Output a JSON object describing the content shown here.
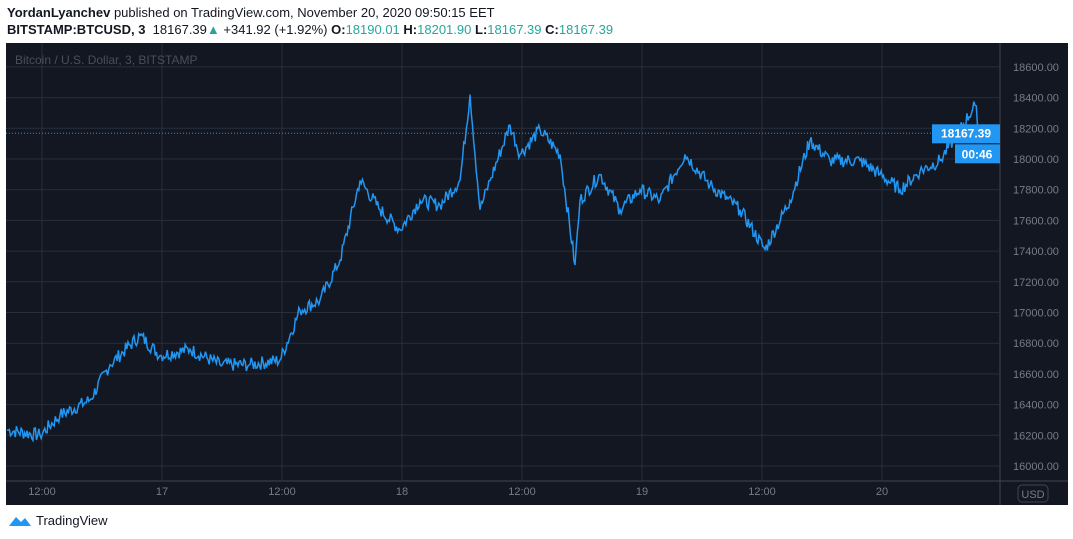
{
  "header": {
    "author": "YordanLyanchev",
    "published": "published on TradingView.com, November 20, 2020 09:50:15 EET"
  },
  "ticker": {
    "symbol": "BITSTAMP:BTCUSD, 3",
    "last": "18167.39",
    "change": "+341.92 (+1.92%)",
    "o_label": "O:",
    "o": "18190.01",
    "h_label": "H:",
    "h": "18201.90",
    "l_label": "L:",
    "l": "18167.39",
    "c_label": "C:",
    "c": "18167.39"
  },
  "footer": {
    "brand": "TradingView"
  },
  "colors": {
    "line": "#2196f3",
    "bg": "#131722",
    "grid": "#363a45",
    "up": "#26a69a"
  },
  "chart_data": {
    "type": "line",
    "title": "Bitcoin / U.S. Dollar, 3, BITSTAMP",
    "currency": "USD",
    "ylim": [
      16000,
      18600
    ],
    "yticks": [
      16000,
      16200,
      16400,
      16600,
      16800,
      17000,
      17200,
      17400,
      17600,
      17800,
      18000,
      18200,
      18400,
      18600
    ],
    "xlim_hours": [
      -3.5,
      95.8
    ],
    "xticks": [
      {
        "h": 0,
        "label": "12:00"
      },
      {
        "h": 12,
        "label": "17"
      },
      {
        "h": 24,
        "label": "12:00"
      },
      {
        "h": 36,
        "label": "18"
      },
      {
        "h": 48,
        "label": "12:00"
      },
      {
        "h": 60,
        "label": "19"
      },
      {
        "h": 72,
        "label": "12:00"
      },
      {
        "h": 84,
        "label": "20"
      }
    ],
    "last_price": "18167.39",
    "countdown": "00:46",
    "x_unit": "hours since Nov 16 12:00",
    "points": [
      [
        -3.5,
        16235
      ],
      [
        -0.2,
        16200
      ],
      [
        1.8,
        16330
      ],
      [
        4.8,
        16430
      ],
      [
        6.8,
        16660
      ],
      [
        9.8,
        16850
      ],
      [
        11.8,
        16720
      ],
      [
        14.8,
        16760
      ],
      [
        17.8,
        16660
      ],
      [
        20.8,
        16660
      ],
      [
        23.8,
        16690
      ],
      [
        25.8,
        17015
      ],
      [
        27.8,
        17080
      ],
      [
        29.8,
        17340
      ],
      [
        31.8,
        17860
      ],
      [
        33.8,
        17670
      ],
      [
        35.8,
        17540
      ],
      [
        37.8,
        17730
      ],
      [
        39.8,
        17700
      ],
      [
        41.8,
        17860
      ],
      [
        42.8,
        18420
      ],
      [
        43.8,
        17670
      ],
      [
        44.8,
        17860
      ],
      [
        46.8,
        18220
      ],
      [
        47.8,
        18030
      ],
      [
        49.8,
        18190
      ],
      [
        51.8,
        18030
      ],
      [
        53.3,
        17310
      ],
      [
        53.8,
        17730
      ],
      [
        55.8,
        17900
      ],
      [
        57.8,
        17670
      ],
      [
        59.8,
        17800
      ],
      [
        61.8,
        17730
      ],
      [
        64.3,
        18030
      ],
      [
        66.8,
        17830
      ],
      [
        69.8,
        17670
      ],
      [
        72.3,
        17410
      ],
      [
        74.8,
        17730
      ],
      [
        76.8,
        18120
      ],
      [
        78.8,
        17990
      ],
      [
        81.8,
        17990
      ],
      [
        83.8,
        17900
      ],
      [
        85.8,
        17800
      ],
      [
        87.8,
        17920
      ],
      [
        89.8,
        17990
      ],
      [
        91.8,
        18190
      ],
      [
        93.3,
        18350
      ],
      [
        93.8,
        18167
      ]
    ]
  }
}
